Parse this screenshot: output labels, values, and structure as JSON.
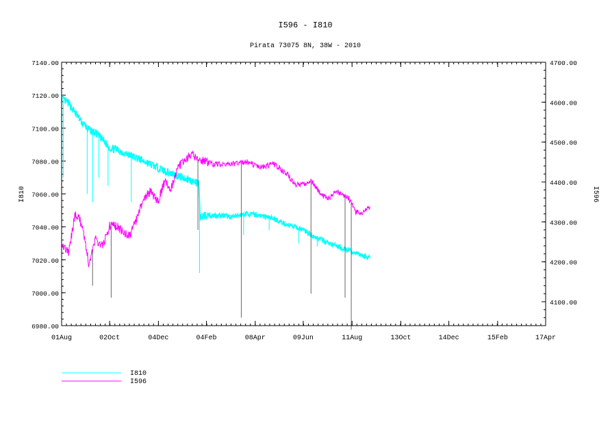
{
  "chart_data": {
    "type": "line",
    "title": "I596 - I810",
    "subtitle": "Pirata 73075 8N, 38W - 2010",
    "xlabel": "",
    "x_unit": "days since 01Aug2010",
    "xlim": [
      0,
      625
    ],
    "x_ticks": [
      {
        "day": 0,
        "label": "01Aug"
      },
      {
        "day": 62,
        "label": "02Oct"
      },
      {
        "day": 125,
        "label": "04Dec"
      },
      {
        "day": 187,
        "label": "04Feb"
      },
      {
        "day": 250,
        "label": "08Apr"
      },
      {
        "day": 312,
        "label": "09Jun"
      },
      {
        "day": 375,
        "label": "11Aug"
      },
      {
        "day": 438,
        "label": "13Oct"
      },
      {
        "day": 500,
        "label": "14Dec"
      },
      {
        "day": 563,
        "label": "15Feb"
      },
      {
        "day": 625,
        "label": "17Apr"
      }
    ],
    "y_left": {
      "label": "I810",
      "lim": [
        6980,
        7140
      ],
      "ticks": [
        "7140.00",
        "7120.00",
        "7100.00",
        "7080.00",
        "7060.00",
        "7040.00",
        "7020.00",
        "7000.00",
        "6980.00"
      ]
    },
    "y_right": {
      "label": "I596",
      "lim": [
        4040,
        4700
      ],
      "ticks": [
        "4700.00",
        "4600.00",
        "4500.00",
        "4400.00",
        "4300.00",
        "4200.00",
        "4100.00"
      ]
    },
    "legend": {
      "placement": "bottom-left",
      "entries": [
        "I810",
        "I596"
      ]
    },
    "series": [
      {
        "name": "I810",
        "axis": "left",
        "color": "#00ffff",
        "x": [
          0,
          9,
          18,
          27,
          35,
          44,
          53,
          62,
          71,
          80,
          97,
          115,
          133,
          150,
          168,
          177,
          179,
          186,
          203,
          221,
          239,
          256,
          274,
          292,
          309,
          327,
          345,
          363,
          380,
          398
        ],
        "y": [
          7118,
          7115,
          7109,
          7103,
          7099,
          7097,
          7093,
          7088,
          7087,
          7085,
          7082,
          7078,
          7074,
          7071,
          7068,
          7066,
          7046,
          7047,
          7047,
          7046,
          7048,
          7047,
          7045,
          7041,
          7039,
          7034,
          7030,
          7027,
          7024,
          7021
        ],
        "spikes": [
          [
            2,
            7070
          ],
          [
            33,
            7060
          ],
          [
            40,
            7055
          ],
          [
            48,
            7070
          ],
          [
            60,
            7065
          ],
          [
            90,
            7055
          ],
          [
            178,
            7012
          ],
          [
            235,
            7035
          ],
          [
            268,
            7038
          ],
          [
            306,
            7030
          ],
          [
            330,
            7028
          ]
        ]
      },
      {
        "name": "I596",
        "axis": "right",
        "color": "#ff00ff",
        "x": [
          0,
          9,
          18,
          27,
          35,
          44,
          53,
          62,
          71,
          80,
          88,
          97,
          106,
          115,
          124,
          133,
          141,
          150,
          159,
          168,
          177,
          186,
          195,
          203,
          221,
          239,
          256,
          274,
          292,
          301,
          309,
          323,
          336,
          345,
          354,
          363,
          371,
          380,
          389,
          398
        ],
        "y": [
          4247,
          4222,
          4324,
          4290,
          4196,
          4256,
          4239,
          4290,
          4290,
          4273,
          4265,
          4307,
          4359,
          4376,
          4350,
          4402,
          4384,
          4436,
          4453,
          4470,
          4453,
          4453,
          4445,
          4445,
          4445,
          4450,
          4436,
          4445,
          4419,
          4393,
          4393,
          4402,
          4367,
          4359,
          4376,
          4367,
          4359,
          4324,
          4324,
          4338
        ],
        "spikes": [
          [
            40,
            4140
          ],
          [
            64,
            4110
          ],
          [
            176,
            4280
          ],
          [
            232,
            4060
          ],
          [
            322,
            4120
          ],
          [
            366,
            4110
          ],
          [
            374,
            4030
          ]
        ]
      }
    ]
  }
}
